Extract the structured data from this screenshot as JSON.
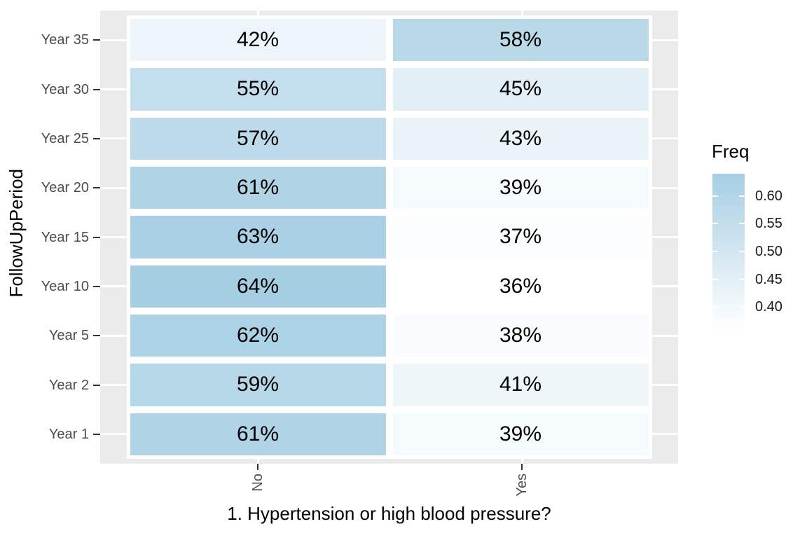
{
  "chart_data": {
    "type": "heatmap",
    "xlabel": "1. Hypertension or high blood pressure?",
    "ylabel": "FollowUpPeriod",
    "x_categories": [
      "No",
      "Yes"
    ],
    "y_categories_top_to_bottom": [
      "Year 35",
      "Year 30",
      "Year 25",
      "Year 20",
      "Year 15",
      "Year 10",
      "Year 5",
      "Year 2",
      "Year 1"
    ],
    "rows": [
      {
        "y": "Year 35",
        "cells": [
          {
            "x": "No",
            "label": "42%",
            "freq": 0.42
          },
          {
            "x": "Yes",
            "label": "58%",
            "freq": 0.58
          }
        ]
      },
      {
        "y": "Year 30",
        "cells": [
          {
            "x": "No",
            "label": "55%",
            "freq": 0.55
          },
          {
            "x": "Yes",
            "label": "45%",
            "freq": 0.45
          }
        ]
      },
      {
        "y": "Year 25",
        "cells": [
          {
            "x": "No",
            "label": "57%",
            "freq": 0.57
          },
          {
            "x": "Yes",
            "label": "43%",
            "freq": 0.43
          }
        ]
      },
      {
        "y": "Year 20",
        "cells": [
          {
            "x": "No",
            "label": "61%",
            "freq": 0.61
          },
          {
            "x": "Yes",
            "label": "39%",
            "freq": 0.39
          }
        ]
      },
      {
        "y": "Year 15",
        "cells": [
          {
            "x": "No",
            "label": "63%",
            "freq": 0.63
          },
          {
            "x": "Yes",
            "label": "37%",
            "freq": 0.37
          }
        ]
      },
      {
        "y": "Year 10",
        "cells": [
          {
            "x": "No",
            "label": "64%",
            "freq": 0.64
          },
          {
            "x": "Yes",
            "label": "36%",
            "freq": 0.36
          }
        ]
      },
      {
        "y": "Year 5",
        "cells": [
          {
            "x": "No",
            "label": "62%",
            "freq": 0.62
          },
          {
            "x": "Yes",
            "label": "38%",
            "freq": 0.38
          }
        ]
      },
      {
        "y": "Year 2",
        "cells": [
          {
            "x": "No",
            "label": "59%",
            "freq": 0.59
          },
          {
            "x": "Yes",
            "label": "41%",
            "freq": 0.41
          }
        ]
      },
      {
        "y": "Year 1",
        "cells": [
          {
            "x": "No",
            "label": "61%",
            "freq": 0.61
          },
          {
            "x": "Yes",
            "label": "39%",
            "freq": 0.39
          }
        ]
      }
    ],
    "legend": {
      "title": "Freq",
      "domain": [
        0.36,
        0.64
      ],
      "tick_labels": [
        "0.60",
        "0.55",
        "0.50",
        "0.45",
        "0.40"
      ],
      "tick_values": [
        0.6,
        0.55,
        0.5,
        0.45,
        0.4
      ]
    },
    "colors": {
      "gradient_low": "#FFFFFF",
      "gradient_high": "#A6CEE3",
      "panel_background": "#EBEBEB",
      "gridline": "#FFFFFF",
      "tile_border": "#FFFFFF",
      "axis_text": "#4D4D4D",
      "tick_mark": "#333333",
      "cell_text": "#000000"
    },
    "grid": "major gridlines on (white), discrete axes",
    "legend_position": "right"
  }
}
